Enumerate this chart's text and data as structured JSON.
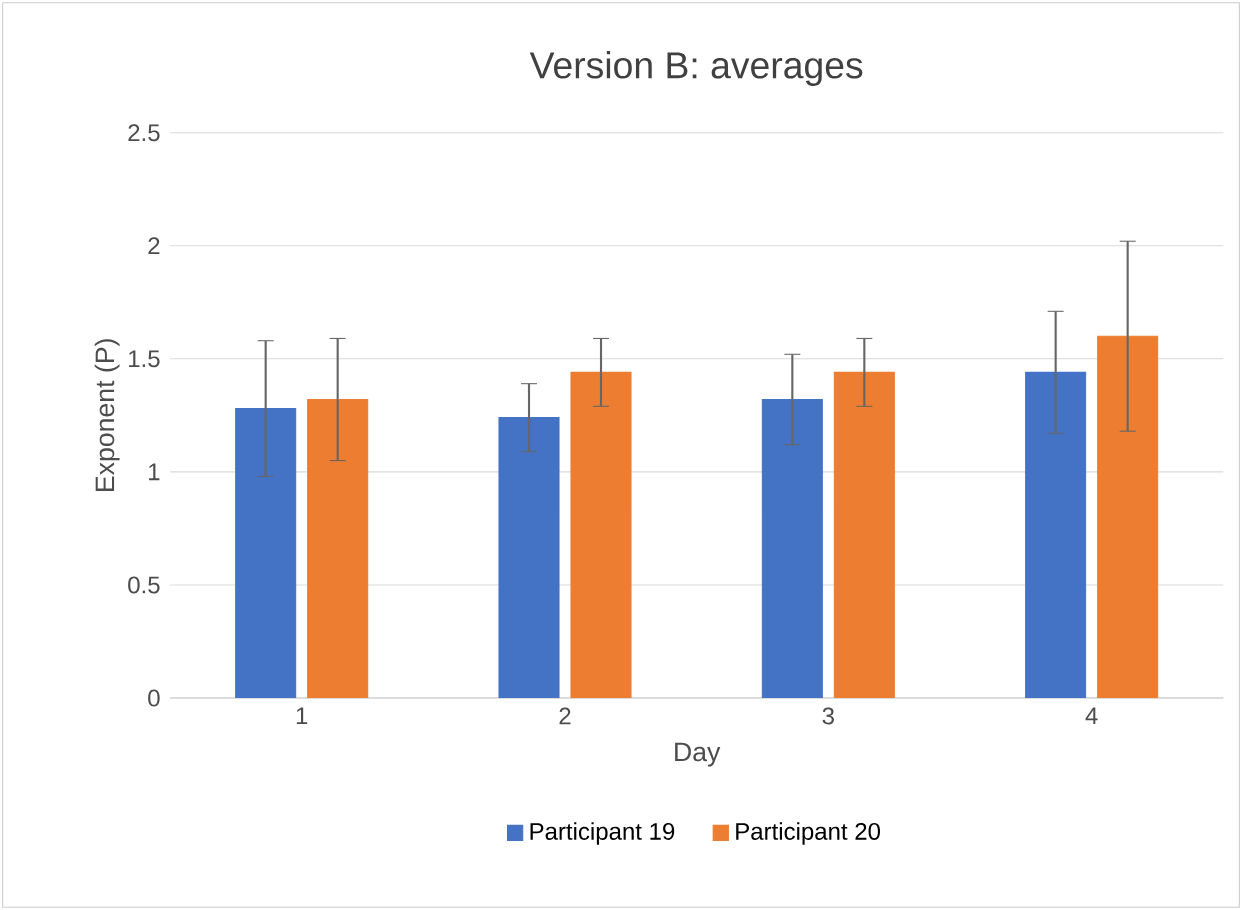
{
  "chart_data": {
    "type": "bar",
    "title": "Version B: averages",
    "xlabel": "Day",
    "ylabel": "Exponent (P)",
    "categories": [
      "1",
      "2",
      "3",
      "4"
    ],
    "series": [
      {
        "name": "Participant 19",
        "color": "#4472c4",
        "values": [
          1.28,
          1.24,
          1.32,
          1.44
        ],
        "errors": [
          0.3,
          0.15,
          0.2,
          0.27
        ]
      },
      {
        "name": "Participant 20",
        "color": "#ed7d31",
        "values": [
          1.32,
          1.44,
          1.44,
          1.6
        ],
        "errors": [
          0.27,
          0.15,
          0.15,
          0.42
        ]
      }
    ],
    "ylim": [
      0,
      2.5
    ],
    "yticks": [
      0,
      0.5,
      1,
      1.5,
      2,
      2.5
    ],
    "grid": "y",
    "legend": "bottom"
  }
}
